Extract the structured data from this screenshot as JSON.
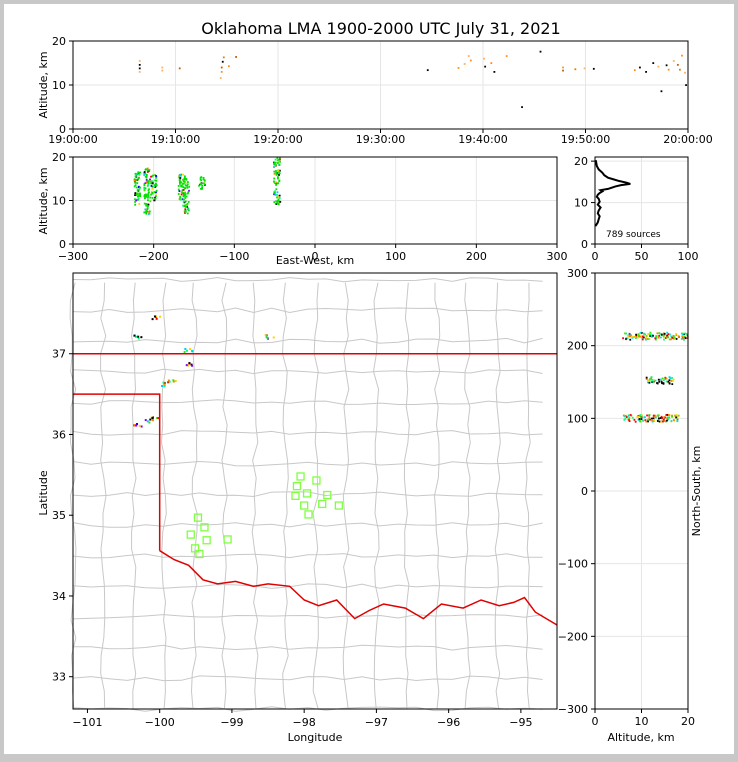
{
  "title": "Oklahoma LMA 1900-2000 UTC July 31, 2021",
  "sources_label": "789 sources",
  "chart_data": [
    {
      "id": "time-height",
      "type": "scatter",
      "xlabel": "",
      "ylabel": "Altitude, km",
      "xlim": [
        "19:00:00",
        "20:00:00"
      ],
      "ylim": [
        0,
        20
      ],
      "xticks": [
        "19:00:00",
        "19:10:00",
        "19:20:00",
        "19:30:00",
        "19:40:00",
        "19:50:00",
        "20:00:00"
      ],
      "yticks": [
        0,
        10,
        20
      ],
      "grid": true,
      "points": [
        {
          "t": 6.5,
          "z": 15.5
        },
        {
          "t": 6.5,
          "z": 14.6
        },
        {
          "t": 6.5,
          "z": 13.8
        },
        {
          "t": 6.5,
          "z": 13.0
        },
        {
          "t": 8.7,
          "z": 14.0
        },
        {
          "t": 8.7,
          "z": 13.3
        },
        {
          "t": 10.4,
          "z": 13.8
        },
        {
          "t": 14.7,
          "z": 16.3
        },
        {
          "t": 14.6,
          "z": 15.3
        },
        {
          "t": 14.5,
          "z": 14.0
        },
        {
          "t": 14.5,
          "z": 13.0
        },
        {
          "t": 14.4,
          "z": 11.6
        },
        {
          "t": 15.2,
          "z": 14.3
        },
        {
          "t": 15.9,
          "z": 16.4
        },
        {
          "t": 34.6,
          "z": 13.4
        },
        {
          "t": 38.6,
          "z": 16.6
        },
        {
          "t": 38.8,
          "z": 15.6
        },
        {
          "t": 38.2,
          "z": 14.8
        },
        {
          "t": 37.6,
          "z": 13.9
        },
        {
          "t": 40.1,
          "z": 16.0
        },
        {
          "t": 40.2,
          "z": 14.2
        },
        {
          "t": 40.8,
          "z": 15.0
        },
        {
          "t": 41.1,
          "z": 13.0
        },
        {
          "t": 42.3,
          "z": 16.6
        },
        {
          "t": 43.8,
          "z": 5.0
        },
        {
          "t": 45.6,
          "z": 17.6
        },
        {
          "t": 47.8,
          "z": 14.0
        },
        {
          "t": 47.8,
          "z": 13.3
        },
        {
          "t": 49.0,
          "z": 13.6
        },
        {
          "t": 49.9,
          "z": 13.8
        },
        {
          "t": 50.8,
          "z": 13.7
        },
        {
          "t": 54.8,
          "z": 13.4
        },
        {
          "t": 55.3,
          "z": 14.0
        },
        {
          "t": 55.9,
          "z": 13.0
        },
        {
          "t": 56.6,
          "z": 15.0
        },
        {
          "t": 57.1,
          "z": 14.2
        },
        {
          "t": 57.4,
          "z": 8.6
        },
        {
          "t": 57.9,
          "z": 14.5
        },
        {
          "t": 58.1,
          "z": 13.5
        },
        {
          "t": 58.6,
          "z": 15.5
        },
        {
          "t": 59.0,
          "z": 14.6
        },
        {
          "t": 59.2,
          "z": 13.5
        },
        {
          "t": 59.4,
          "z": 16.7
        },
        {
          "t": 59.7,
          "z": 12.8
        },
        {
          "t": 59.8,
          "z": 10.0
        }
      ]
    },
    {
      "id": "ew-height",
      "type": "scatter",
      "xlabel": "East-West, km",
      "ylabel": "Altitude, km",
      "xlim": [
        -300,
        300
      ],
      "ylim": [
        0,
        20
      ],
      "xticks": [
        -300,
        -200,
        -100,
        0,
        100,
        200,
        300
      ],
      "yticks": [
        0,
        10,
        20
      ],
      "grid": true,
      "clusters": [
        {
          "x": -220,
          "zmin": 9,
          "zmax": 17
        },
        {
          "x": -208,
          "zmin": 6.5,
          "zmax": 17.5
        },
        {
          "x": -200,
          "zmin": 10,
          "zmax": 16
        },
        {
          "x": -165,
          "zmin": 10,
          "zmax": 16.5
        },
        {
          "x": -160,
          "zmin": 7,
          "zmax": 15
        },
        {
          "x": -140,
          "zmin": 12.5,
          "zmax": 15.5
        },
        {
          "x": -47,
          "zmin": 9,
          "zmax": 20
        }
      ]
    },
    {
      "id": "height-histogram",
      "type": "line",
      "xlabel": "",
      "ylabel": "",
      "xlim": [
        0,
        100
      ],
      "ylim": [
        0,
        21
      ],
      "xticks": [
        0,
        50,
        100
      ],
      "yticks": [
        0,
        10,
        20
      ],
      "grid": true,
      "x": [
        1,
        3,
        4,
        5,
        3,
        4,
        6,
        3,
        5,
        4,
        2,
        3,
        5,
        8,
        6,
        14,
        18,
        22,
        28,
        38,
        34,
        26,
        20,
        14,
        10,
        8,
        4,
        2,
        1
      ],
      "y": [
        4.5,
        5.2,
        6.0,
        6.7,
        7.4,
        8.1,
        8.8,
        9.5,
        10.2,
        10.9,
        11.4,
        11.9,
        12.3,
        12.7,
        13.0,
        13.3,
        13.6,
        13.9,
        14.2,
        14.5,
        14.8,
        15.2,
        15.6,
        16.0,
        16.6,
        17.2,
        18.0,
        18.8,
        20.0
      ]
    },
    {
      "id": "plan-view",
      "type": "scatter",
      "xlabel": "Longitude",
      "ylabel": "Latitude",
      "xlim": [
        -101.2,
        -94.5
      ],
      "ylim": [
        32.6,
        38.0
      ],
      "xticks": [
        -101,
        -100,
        -99,
        -98,
        -97,
        -96,
        -95
      ],
      "yticks": [
        33,
        34,
        35,
        36,
        37
      ],
      "stations": [
        {
          "lon": -98.05,
          "lat": 35.48
        },
        {
          "lon": -98.1,
          "lat": 35.36
        },
        {
          "lon": -98.12,
          "lat": 35.24
        },
        {
          "lon": -97.83,
          "lat": 35.43
        },
        {
          "lon": -97.96,
          "lat": 35.27
        },
        {
          "lon": -97.68,
          "lat": 35.25
        },
        {
          "lon": -97.52,
          "lat": 35.12
        },
        {
          "lon": -97.75,
          "lat": 35.14
        },
        {
          "lon": -98.0,
          "lat": 35.12
        },
        {
          "lon": -97.94,
          "lat": 35.01
        },
        {
          "lon": -99.47,
          "lat": 34.97
        },
        {
          "lon": -99.38,
          "lat": 34.85
        },
        {
          "lon": -99.57,
          "lat": 34.76
        },
        {
          "lon": -99.35,
          "lat": 34.69
        },
        {
          "lon": -99.06,
          "lat": 34.7
        },
        {
          "lon": -99.51,
          "lat": 34.59
        },
        {
          "lon": -99.45,
          "lat": 34.52
        }
      ],
      "sources": [
        {
          "lon": -100.3,
          "lat": 36.12
        },
        {
          "lon": -100.15,
          "lat": 36.17
        },
        {
          "lon": -100.06,
          "lat": 36.2
        },
        {
          "lon": -99.83,
          "lat": 36.65
        },
        {
          "lon": -99.94,
          "lat": 36.62
        },
        {
          "lon": -99.6,
          "lat": 37.04
        },
        {
          "lon": -99.6,
          "lat": 36.87
        },
        {
          "lon": -98.48,
          "lat": 37.21
        },
        {
          "lon": -100.04,
          "lat": 37.45
        },
        {
          "lon": -100.3,
          "lat": 37.21
        }
      ]
    },
    {
      "id": "height-ns",
      "type": "scatter",
      "xlabel": "Altitude, km",
      "ylabel": "North-South, km",
      "xlim": [
        0,
        20
      ],
      "ylim": [
        -300,
        300
      ],
      "xticks": [
        0,
        10,
        20
      ],
      "yticks": [
        -300,
        -200,
        -100,
        0,
        100,
        200,
        300
      ],
      "grid": true,
      "clusters": [
        {
          "y": 213,
          "zmin": 6,
          "zmax": 20
        },
        {
          "y": 152,
          "zmin": 11,
          "zmax": 17
        },
        {
          "y": 100,
          "zmin": 6,
          "zmax": 18
        }
      ]
    }
  ]
}
